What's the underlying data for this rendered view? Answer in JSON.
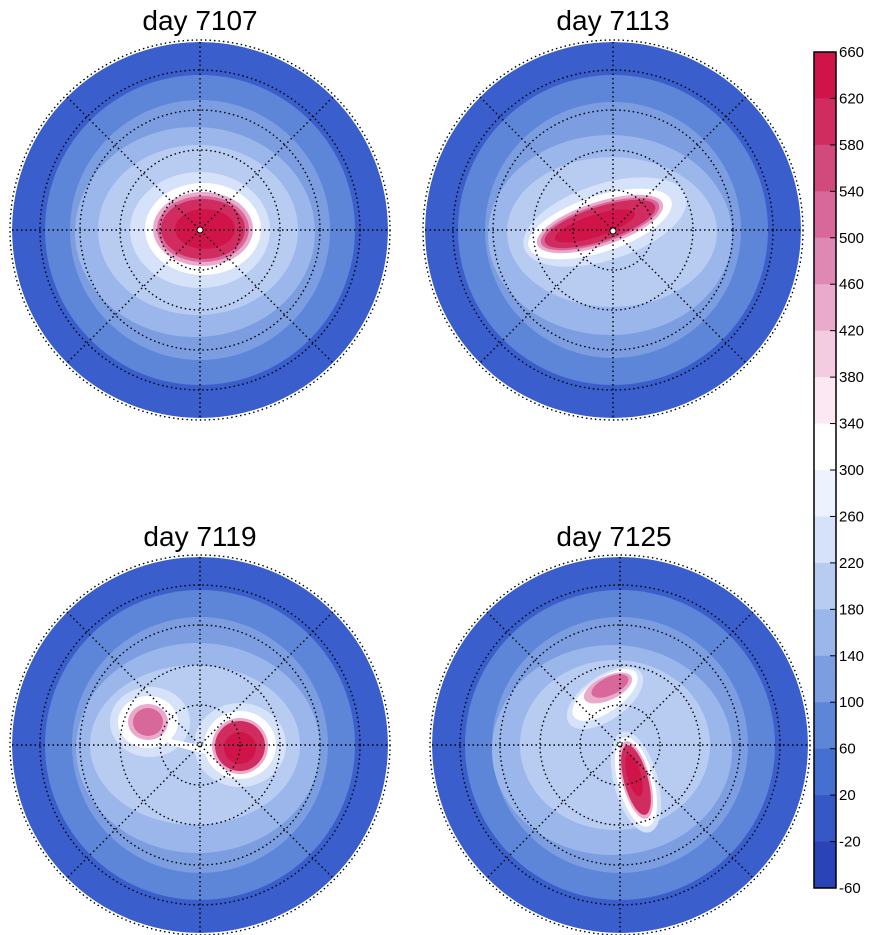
{
  "chart_data": [
    {
      "type": "heatmap",
      "title": "day 7107",
      "projection": "polar",
      "features": [
        {
          "shape": "single-ellipse",
          "peak_value": 660,
          "rotation_deg": 0
        }
      ]
    },
    {
      "type": "heatmap",
      "title": "day 7113",
      "projection": "polar",
      "features": [
        {
          "shape": "elongated-ellipse",
          "peak_value": 620,
          "rotation_deg": -18
        }
      ]
    },
    {
      "type": "heatmap",
      "title": "day 7119",
      "projection": "polar",
      "features": [
        {
          "shape": "split-vortex-left",
          "peak_value": 580,
          "rotation_deg": 0
        },
        {
          "shape": "split-vortex-right",
          "peak_value": 620,
          "rotation_deg": 0
        }
      ]
    },
    {
      "type": "heatmap",
      "title": "day 7125",
      "projection": "polar",
      "features": [
        {
          "shape": "split-vortex-upper",
          "peak_value": 580,
          "rotation_deg": -35
        },
        {
          "shape": "split-vortex-lower",
          "peak_value": 620,
          "rotation_deg": 75
        }
      ]
    }
  ],
  "colorbar": {
    "ticks": [
      660,
      620,
      580,
      540,
      500,
      460,
      420,
      380,
      340,
      300,
      260,
      220,
      180,
      140,
      100,
      60,
      20,
      -20,
      -60
    ],
    "range": [
      -60,
      660
    ],
    "colors": [
      "#d0144a",
      "#d02c60",
      "#d24a7c",
      "#d8689a",
      "#e088b4",
      "#eaaacc",
      "#f4cce2",
      "#fbe8f2",
      "#ffffff",
      "#ecf3ff",
      "#d5e2fa",
      "#b8ccf2",
      "#9bb6ea",
      "#7c9ee0",
      "#5e86d8",
      "#456fd0",
      "#3658c6",
      "#2a44b8"
    ]
  },
  "colors": {
    "background": "#ffffff",
    "outer_blue": "#3a5fcd",
    "grid": "#000000"
  }
}
